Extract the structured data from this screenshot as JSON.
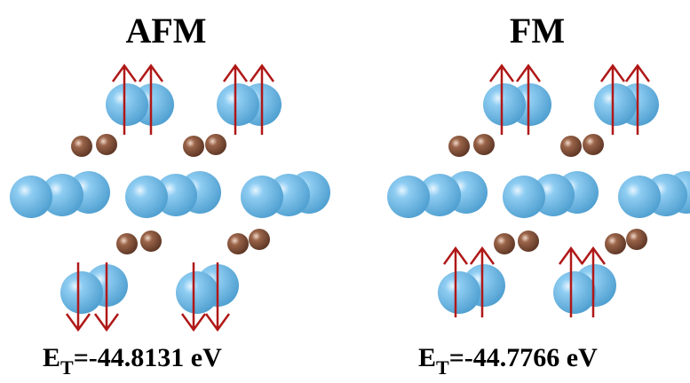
{
  "panels": [
    {
      "title": "AFM",
      "energy": {
        "symbol": "E",
        "subscript": "T",
        "text": "=-44.8131 eV"
      }
    },
    {
      "title": "FM",
      "energy": {
        "symbol": "E",
        "subscript": "T",
        "text": "=-44.7766 eV"
      }
    }
  ]
}
